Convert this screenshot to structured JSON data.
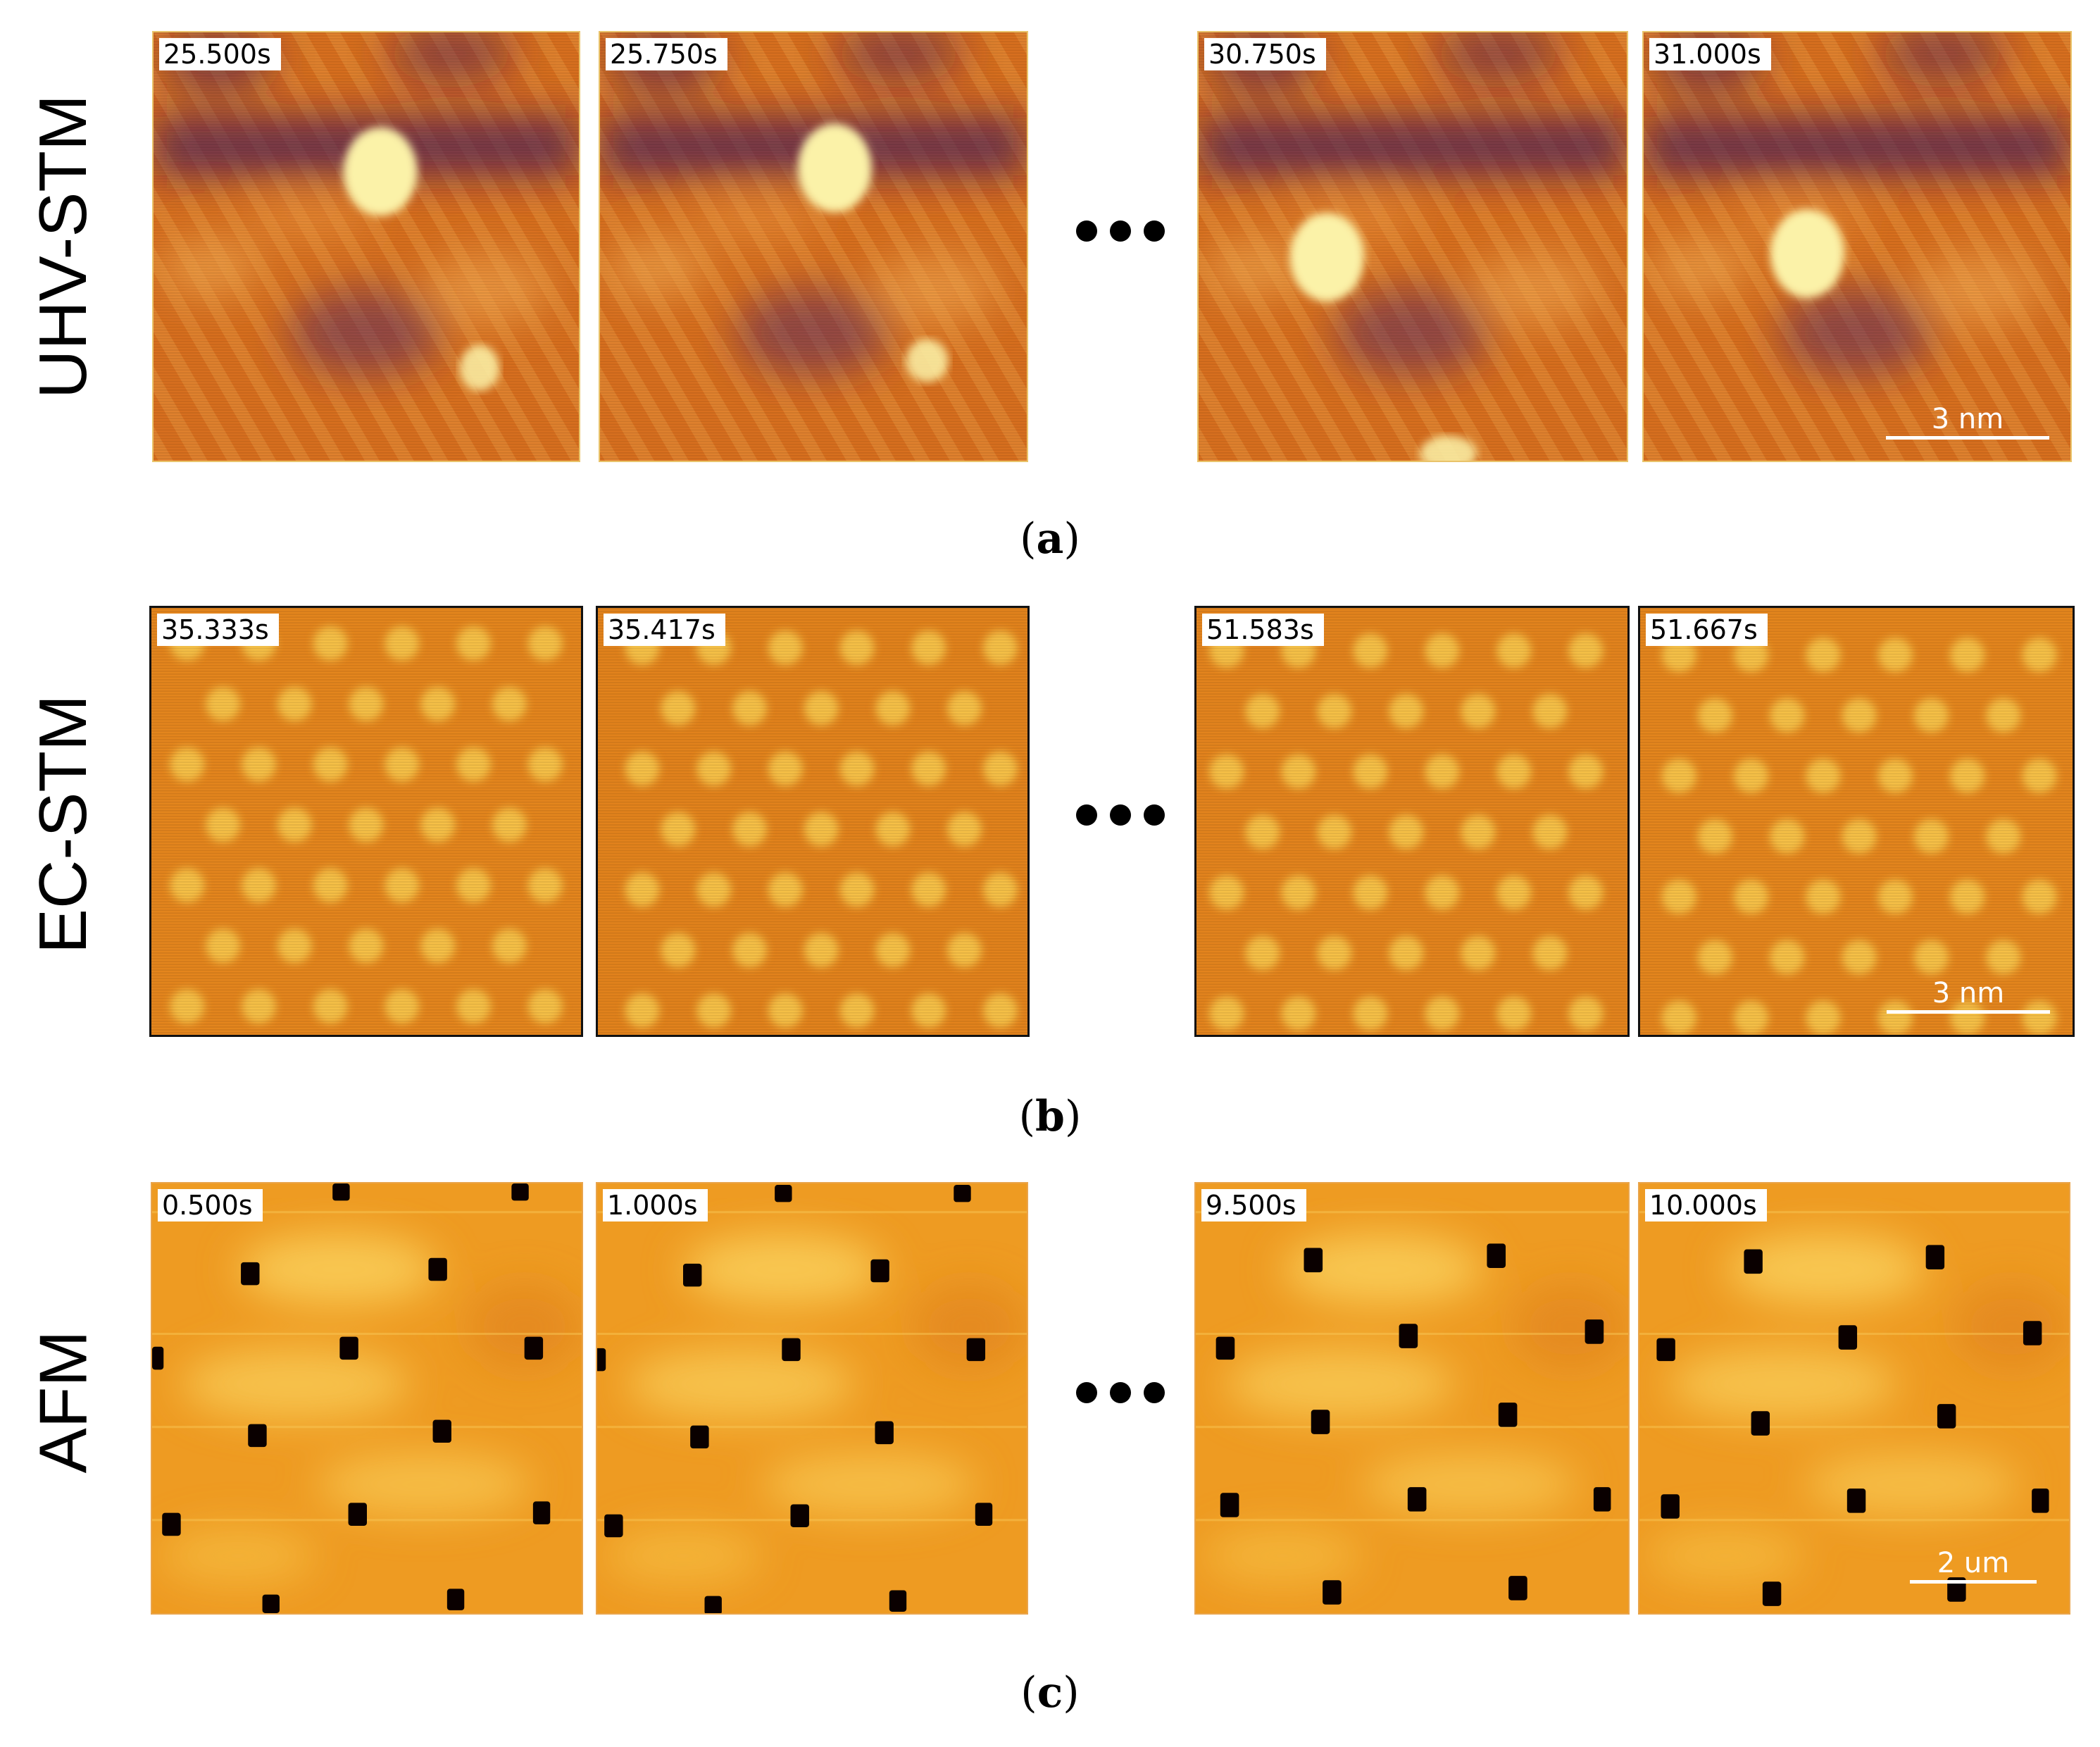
{
  "figure": {
    "rows": [
      {
        "id": "a",
        "label": "UHV-STM",
        "caption_letter": "a",
        "frames": [
          "25.500s",
          "25.750s",
          "30.750s",
          "31.000s"
        ],
        "scale_bar": "3 nm",
        "pattern": "uhv"
      },
      {
        "id": "b",
        "label": "EC-STM",
        "caption_letter": "b",
        "frames": [
          "35.333s",
          "35.417s",
          "51.583s",
          "51.667s"
        ],
        "scale_bar": "3 nm",
        "pattern": "ec"
      },
      {
        "id": "c",
        "label": "AFM",
        "caption_letter": "c",
        "frames": [
          "0.500s",
          "1.000s",
          "9.500s",
          "10.000s"
        ],
        "scale_bar": "2 um",
        "pattern": "afm"
      }
    ],
    "colors": {
      "uhv_background": "#d9701f",
      "uhv_dark": "#4a1a5c",
      "uhv_bright": "#fbf2a8",
      "ec_background": "#e5861d",
      "ec_spot": "#f7c146",
      "afm_background": "#ee9b22",
      "afm_bright": "#fbd35e",
      "afm_hole": "#0a0000"
    }
  }
}
